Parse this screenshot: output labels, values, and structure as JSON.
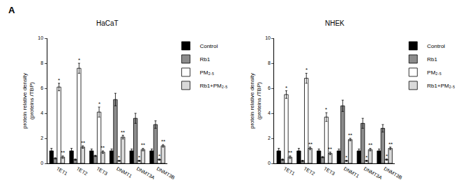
{
  "panel_label": "A",
  "chart_data": [
    {
      "type": "bar",
      "title": "HaCaT",
      "ylabel": [
        "protein relative density",
        "(proteins /TBP)"
      ],
      "categories": [
        "TET1",
        "TET2",
        "TET3",
        "DNMT1",
        "DNMT3A",
        "DNMT3B"
      ],
      "ylim": [
        0,
        10
      ],
      "yticks": [
        0,
        2,
        4,
        6,
        8,
        10
      ],
      "grid": false,
      "legend": "upper right",
      "series": [
        {
          "name": "Control",
          "color": "#000000",
          "values": [
            1.0,
            1.0,
            1.0,
            1.0,
            1.0,
            1.0
          ],
          "errors": [
            0.2,
            0.2,
            0.15,
            0.15,
            0.15,
            0.15
          ],
          "annotations": [
            null,
            null,
            null,
            null,
            null,
            null
          ]
        },
        {
          "name": "Rb1",
          "color": "#8c8c8c",
          "values": [
            0.4,
            0.3,
            0.6,
            5.1,
            3.6,
            3.1
          ],
          "errors": [
            0.05,
            0.05,
            0.05,
            0.5,
            0.4,
            0.3
          ],
          "annotations": [
            null,
            null,
            null,
            null,
            null,
            null
          ]
        },
        {
          "name": "PM₂.₅",
          "color": "#ffffff",
          "values": [
            6.1,
            7.6,
            4.1,
            0.2,
            0.2,
            0.3
          ],
          "errors": [
            0.3,
            0.4,
            0.4,
            0.05,
            0.05,
            0.05
          ],
          "annotations": [
            "*",
            "*",
            "*",
            "*",
            "*",
            "*"
          ]
        },
        {
          "name": "Rb1+PM₂.₅",
          "color": "#d9d9d9",
          "values": [
            0.5,
            1.3,
            0.9,
            2.1,
            1.1,
            1.4
          ],
          "errors": [
            0.1,
            0.1,
            0.1,
            0.15,
            0.1,
            0.1
          ],
          "annotations": [
            "**",
            "**",
            "**",
            "**",
            "**",
            "**"
          ]
        }
      ]
    },
    {
      "type": "bar",
      "title": "NHEK",
      "ylabel": [
        "protein relative density",
        "(proteins /TBP)"
      ],
      "categories": [
        "TET1",
        "TET2",
        "TET3",
        "DNMT1",
        "DNMT3A",
        "DNMT3B"
      ],
      "ylim": [
        0,
        10
      ],
      "yticks": [
        0,
        2,
        4,
        6,
        8,
        10
      ],
      "grid": false,
      "legend": "upper right",
      "series": [
        {
          "name": "Control",
          "color": "#000000",
          "values": [
            1.0,
            1.0,
            1.0,
            1.0,
            1.0,
            1.0
          ],
          "errors": [
            0.2,
            0.2,
            0.15,
            0.15,
            0.15,
            0.15
          ],
          "annotations": [
            null,
            null,
            null,
            null,
            null,
            null
          ]
        },
        {
          "name": "Rb1",
          "color": "#8c8c8c",
          "values": [
            0.3,
            0.2,
            0.5,
            4.6,
            3.2,
            2.8
          ],
          "errors": [
            0.05,
            0.05,
            0.05,
            0.45,
            0.4,
            0.3
          ],
          "annotations": [
            null,
            null,
            null,
            null,
            null,
            null
          ]
        },
        {
          "name": "PM₂.₅",
          "color": "#ffffff",
          "values": [
            5.5,
            6.8,
            3.7,
            0.2,
            0.2,
            0.3
          ],
          "errors": [
            0.3,
            0.4,
            0.35,
            0.05,
            0.05,
            0.05
          ],
          "annotations": [
            "*",
            "*",
            "*",
            "*",
            "*",
            "*"
          ]
        },
        {
          "name": "Rb1+PM₂.₅",
          "color": "#d9d9d9",
          "values": [
            0.5,
            1.2,
            0.8,
            1.9,
            1.1,
            1.2
          ],
          "errors": [
            0.1,
            0.1,
            0.1,
            0.1,
            0.1,
            0.1
          ],
          "annotations": [
            "**",
            "**",
            "**",
            "**",
            "**",
            "**"
          ]
        }
      ]
    }
  ]
}
